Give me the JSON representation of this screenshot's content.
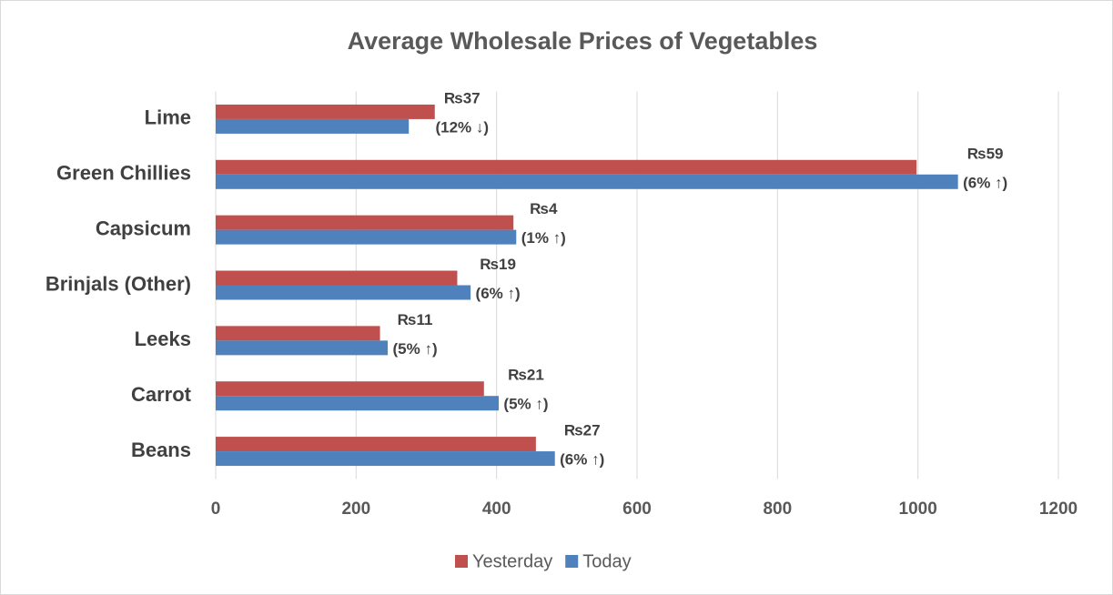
{
  "chart_data": {
    "type": "bar",
    "orientation": "horizontal",
    "title": "Average Wholesale Prices of Vegetables",
    "categories": [
      "Lime",
      "Green Chillies",
      "Capsicum",
      "Brinjals (Other)",
      "Leeks",
      "Carrot",
      "Beans"
    ],
    "series": [
      {
        "name": "Yesterday",
        "color": "#c0504d",
        "values": [
          312,
          998,
          424,
          344,
          234,
          382,
          456
        ]
      },
      {
        "name": "Today",
        "color": "#4f81bd",
        "values": [
          275,
          1057,
          428,
          363,
          245,
          403,
          483
        ]
      }
    ],
    "annotations": [
      [
        "₨37",
        "(12% ↓)"
      ],
      [
        "₨59",
        "(6% ↑)"
      ],
      [
        "₨4",
        "(1% ↑)"
      ],
      [
        "₨19",
        "(6% ↑)"
      ],
      [
        "₨11",
        "(5% ↑)"
      ],
      [
        "₨21",
        "(5% ↑)"
      ],
      [
        "₨27",
        "(6% ↑)"
      ]
    ],
    "xlim": [
      0,
      1200
    ],
    "xticks": [
      0,
      200,
      400,
      600,
      800,
      1000,
      1200
    ],
    "grid": true,
    "legend": "bottom"
  }
}
